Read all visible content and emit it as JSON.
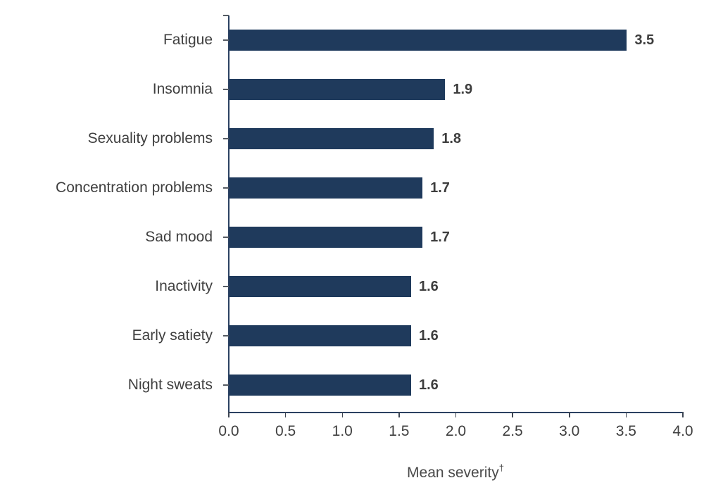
{
  "chart_data": {
    "type": "bar",
    "orientation": "horizontal",
    "title": "",
    "categories": [
      "Fatigue",
      "Insomnia",
      "Sexuality problems",
      "Concentration problems",
      "Sad mood",
      "Inactivity",
      "Early satiety",
      "Night sweats"
    ],
    "values": [
      3.5,
      1.9,
      1.8,
      1.7,
      1.7,
      1.6,
      1.6,
      1.6
    ],
    "value_labels": [
      "3.5",
      "1.9",
      "1.8",
      "1.7",
      "1.7",
      "1.6",
      "1.6",
      "1.6"
    ],
    "xlabel": "Mean severity†",
    "xlabel_text": "Mean severity",
    "xlabel_sup": "†",
    "ylabel": "",
    "xlim": [
      0.0,
      4.0
    ],
    "x_ticks": [
      0.0,
      0.5,
      1.0,
      1.5,
      2.0,
      2.5,
      3.0,
      3.5,
      4.0
    ],
    "x_tick_labels": [
      "0.0",
      "0.5",
      "1.0",
      "1.5",
      "2.0",
      "2.5",
      "3.0",
      "3.5",
      "4.0"
    ],
    "grid": false,
    "legend": false,
    "bar_color": "#1f3a5c",
    "axis_color": "#2b4162",
    "text_color": "#3f3f3f",
    "background": "#ffffff"
  }
}
